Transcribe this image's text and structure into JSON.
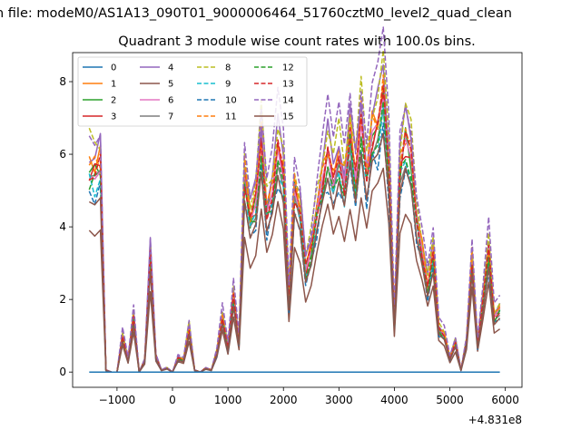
{
  "chart_data": {
    "type": "line",
    "suptitle": "n file: modeM0/AS1A13_090T01_9000006464_51760cztM0_level2_quad_clean",
    "title": "Quadrant 3 module wise count rates with 100.0s bins.",
    "xlabel": "",
    "ylabel": "",
    "x_offset_label": "+4.831e8",
    "xlim": [
      -1800,
      6300
    ],
    "ylim": [
      -0.42,
      8.8
    ],
    "x_ticks": [
      -1000,
      0,
      1000,
      2000,
      3000,
      4000,
      5000,
      6000
    ],
    "x_tick_labels": [
      "−1000",
      "0",
      "1000",
      "2000",
      "3000",
      "4000",
      "5000",
      "6000"
    ],
    "y_ticks": [
      0,
      2,
      4,
      6,
      8
    ],
    "y_tick_labels": [
      "0",
      "2",
      "4",
      "6",
      "8"
    ],
    "grid": false,
    "legend_position": "upper-left",
    "legend_columns": 4,
    "x": [
      -1500,
      -1400,
      -1300,
      -1200,
      -1100,
      -1000,
      -900,
      -800,
      -700,
      -600,
      -500,
      -400,
      -300,
      -200,
      -100,
      0,
      100,
      200,
      300,
      400,
      500,
      600,
      700,
      800,
      900,
      1000,
      1100,
      1200,
      1300,
      1400,
      1500,
      1600,
      1700,
      1800,
      1900,
      2000,
      2100,
      2200,
      2300,
      2400,
      2500,
      2600,
      2700,
      2800,
      2900,
      3000,
      3100,
      3200,
      3300,
      3400,
      3500,
      3600,
      3700,
      3800,
      3900,
      4000,
      4100,
      4200,
      4300,
      4400,
      4500,
      4600,
      4700,
      4800,
      4900,
      5000,
      5100,
      5200,
      5300,
      5400,
      5500,
      5600,
      5700,
      5800,
      5900
    ],
    "base_profile": [
      5.2,
      5.1,
      5.3,
      0.05,
      0.0,
      0.0,
      0.9,
      0.3,
      1.4,
      0.0,
      0.3,
      3.0,
      0.4,
      0.05,
      0.1,
      0.0,
      0.35,
      0.3,
      1.1,
      0.05,
      0.0,
      0.1,
      0.05,
      0.5,
      1.4,
      0.6,
      1.9,
      0.8,
      5.0,
      3.9,
      4.3,
      5.8,
      4.1,
      4.6,
      5.7,
      4.9,
      1.8,
      4.6,
      4.1,
      2.6,
      3.1,
      4.1,
      4.9,
      5.6,
      4.7,
      5.5,
      4.8,
      6.1,
      4.9,
      6.3,
      5.0,
      6.1,
      6.3,
      6.9,
      5.2,
      1.3,
      5.2,
      5.9,
      5.4,
      3.9,
      3.1,
      2.2,
      2.9,
      1.1,
      0.95,
      0.35,
      0.75,
      0.05,
      0.8,
      2.9,
      0.7,
      1.8,
      3.1,
      1.4,
      1.6
    ],
    "module_factors": [
      1.15,
      1.12,
      1.08,
      1.07,
      1.18,
      0.78,
      1.04,
      1.0,
      1.22,
      1.0,
      0.94,
      1.12,
      1.02,
      1.08,
      1.3,
      0.9
    ],
    "series": [
      {
        "name": "0",
        "color": "#1f77b4",
        "dash": "solid",
        "values": "zero"
      },
      {
        "name": "1",
        "color": "#ff7f0e",
        "dash": "solid"
      },
      {
        "name": "2",
        "color": "#2ca02c",
        "dash": "solid"
      },
      {
        "name": "3",
        "color": "#d62728",
        "dash": "solid"
      },
      {
        "name": "4",
        "color": "#9467bd",
        "dash": "solid"
      },
      {
        "name": "5",
        "color": "#8c564b",
        "dash": "solid"
      },
      {
        "name": "6",
        "color": "#e377c2",
        "dash": "solid"
      },
      {
        "name": "7",
        "color": "#7f7f7f",
        "dash": "solid"
      },
      {
        "name": "8",
        "color": "#bcbd22",
        "dash": "dashed"
      },
      {
        "name": "9",
        "color": "#17becf",
        "dash": "dashed"
      },
      {
        "name": "10",
        "color": "#1f77b4",
        "dash": "dashed"
      },
      {
        "name": "11",
        "color": "#ff7f0e",
        "dash": "dashed"
      },
      {
        "name": "12",
        "color": "#2ca02c",
        "dash": "dashed"
      },
      {
        "name": "13",
        "color": "#d62728",
        "dash": "dashed"
      },
      {
        "name": "14",
        "color": "#9467bd",
        "dash": "dashed"
      },
      {
        "name": "15",
        "color": "#8c564b",
        "dash": "solid"
      }
    ]
  }
}
